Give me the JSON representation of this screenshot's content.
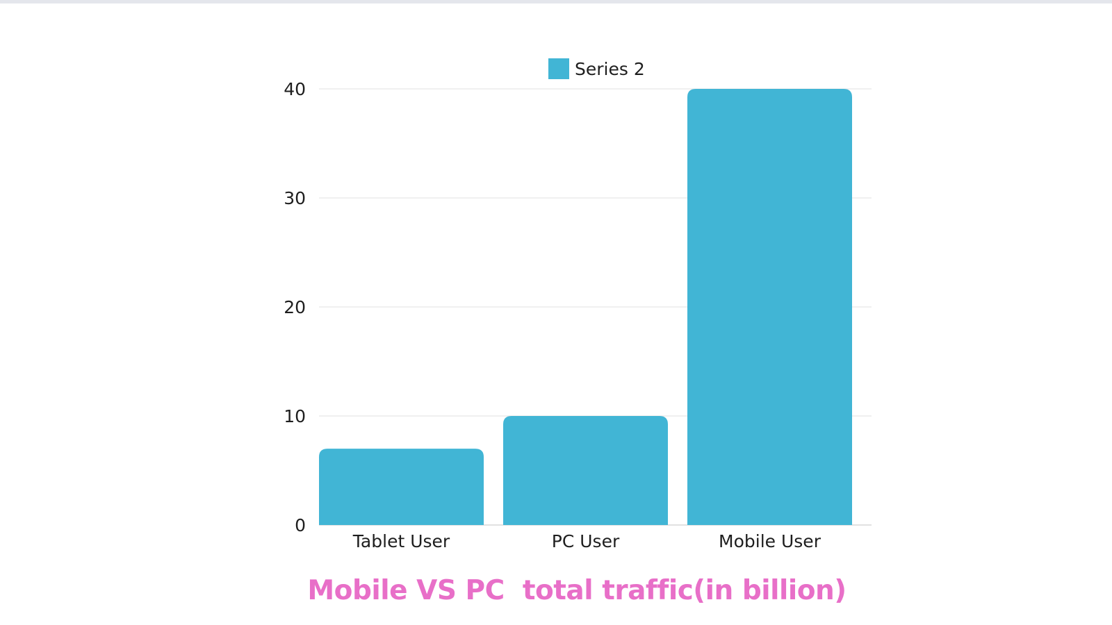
{
  "chart_data": {
    "type": "bar",
    "title": "Mobile VS PC  total traffic(in billion)",
    "xlabel": "",
    "ylabel": "",
    "categories": [
      "Tablet User",
      "PC User",
      "Mobile User"
    ],
    "series": [
      {
        "name": "Series 2",
        "values": [
          7,
          10,
          40
        ]
      }
    ],
    "ylim": [
      0,
      40
    ],
    "yticks": [
      0,
      10,
      20,
      30,
      40
    ],
    "grid": true,
    "legend": "top-center",
    "colors": {
      "bar": "#41b5d5",
      "title": "#e86fc8",
      "grid": "#e6e6e6"
    }
  }
}
